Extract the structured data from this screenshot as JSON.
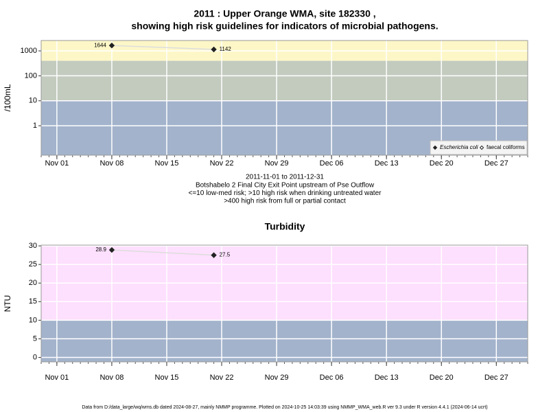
{
  "chart_data": [
    {
      "type": "line",
      "title": [
        "2011 : Upper Orange WMA, site 182330 ,",
        "showing high risk guidelines for indicators of microbial pathogens."
      ],
      "ylabel": "/100mL",
      "ylog": true,
      "ylim": [
        0.066,
        2600
      ],
      "yticks": [
        1,
        10,
        100,
        1000
      ],
      "xlim": [
        "2011-10-30",
        "2011-12-31"
      ],
      "xticks": [
        {
          "value": "2011-11-01",
          "label": "Nov 01"
        },
        {
          "value": "2011-11-08",
          "label": "Nov 08"
        },
        {
          "value": "2011-11-15",
          "label": "Nov 15"
        },
        {
          "value": "2011-11-22",
          "label": "Nov 22"
        },
        {
          "value": "2011-11-29",
          "label": "Nov 29"
        },
        {
          "value": "2011-12-06",
          "label": "Dec 06"
        },
        {
          "value": "2011-12-13",
          "label": "Dec 13"
        },
        {
          "value": "2011-12-20",
          "label": "Dec 20"
        },
        {
          "value": "2011-12-27",
          "label": "Dec 27"
        }
      ],
      "x": [
        "2011-11-08",
        "2011-11-21"
      ],
      "series": [
        {
          "name": "Escherichia coli",
          "color": "#222222",
          "values": [
            1644,
            1142
          ]
        },
        {
          "name": "faecal coliforms",
          "color": "#222222",
          "values": [
            null,
            null
          ]
        }
      ],
      "bands": [
        {
          "from": null,
          "to": 10,
          "color": "#a3b3cc"
        },
        {
          "from": 10,
          "to": 400,
          "color": "#c3cbbf"
        },
        {
          "from": 400,
          "to": null,
          "color": "#fdf7c8"
        }
      ],
      "grid": true,
      "legend": "bottom-right",
      "notes": [
        "2011-11-01 to 2011-12-31",
        "Botshabelo 2 Final City Exit Point upstream of Pse Outflow",
        "<=10 low-med risk; >10 high risk when drinking untreated water",
        ">400 high risk from full or partial contact"
      ]
    },
    {
      "type": "line",
      "title": [
        "Turbidity"
      ],
      "ylabel": "NTU",
      "ylog": false,
      "ylim": [
        -1.2,
        30.2
      ],
      "yticks": [
        0,
        5,
        10,
        15,
        20,
        25,
        30
      ],
      "xlim": [
        "2011-10-30",
        "2011-12-31"
      ],
      "xticks": [
        {
          "value": "2011-11-01",
          "label": "Nov 01"
        },
        {
          "value": "2011-11-08",
          "label": "Nov 08"
        },
        {
          "value": "2011-11-15",
          "label": "Nov 15"
        },
        {
          "value": "2011-11-22",
          "label": "Nov 22"
        },
        {
          "value": "2011-11-29",
          "label": "Nov 29"
        },
        {
          "value": "2011-12-06",
          "label": "Dec 06"
        },
        {
          "value": "2011-12-13",
          "label": "Dec 13"
        },
        {
          "value": "2011-12-20",
          "label": "Dec 20"
        },
        {
          "value": "2011-12-27",
          "label": "Dec 27"
        }
      ],
      "x": [
        "2011-11-08",
        "2011-11-21"
      ],
      "series": [
        {
          "color": "#222222",
          "values": [
            28.9,
            27.5
          ]
        }
      ],
      "bands": [
        {
          "from": null,
          "to": 10,
          "color": "#a3b3cc"
        },
        {
          "from": 10,
          "to": null,
          "color": "#fde0fd"
        }
      ],
      "grid": true
    }
  ],
  "footer": "Data from D:/data_large/wq/wms.db dated 2024-08-27, mainly NMMP programme. Plotted on 2024-10-25 14:03:39 using NMMP_WMA_web.R ver 9.3 under R version 4.4.1 (2024-06-14 ucrt)"
}
